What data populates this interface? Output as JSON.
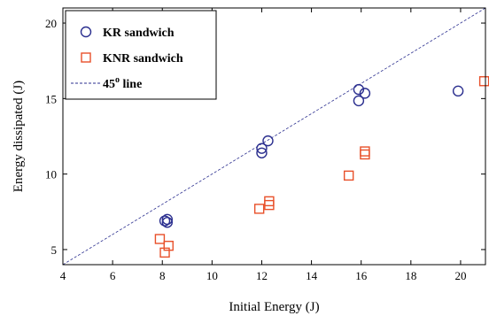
{
  "chart_data": {
    "type": "scatter",
    "xlabel": "Initial Energy (J)",
    "ylabel": "Energy dissipated (J)",
    "xlim": [
      4,
      21
    ],
    "ylim": [
      4,
      21
    ],
    "xticks": [
      4,
      6,
      8,
      10,
      12,
      14,
      16,
      18,
      20
    ],
    "yticks": [
      5,
      10,
      15,
      20
    ],
    "grid": false,
    "legend_position": "top-left",
    "series": [
      {
        "name": "KR sandwich",
        "marker": "circle",
        "color": "#2b2f8f",
        "x": [
          8.1,
          8.2,
          8.2,
          12.0,
          12.0,
          12.25,
          15.9,
          15.9,
          16.15,
          19.9
        ],
        "y": [
          6.9,
          6.8,
          7.0,
          11.7,
          11.4,
          12.2,
          15.6,
          14.85,
          15.35,
          15.5
        ]
      },
      {
        "name": "KNR sandwich",
        "marker": "square",
        "color": "#e8502a",
        "x": [
          7.9,
          8.1,
          8.25,
          11.9,
          12.3,
          12.3,
          15.5,
          16.15,
          16.15,
          20.95
        ],
        "y": [
          5.7,
          4.8,
          5.25,
          7.7,
          7.95,
          8.2,
          9.9,
          11.5,
          11.3,
          16.15
        ]
      }
    ],
    "reference_line": {
      "label_main": "45",
      "label_sup": "o",
      "label_rest": " line",
      "color": "#2b2f8f"
    }
  }
}
